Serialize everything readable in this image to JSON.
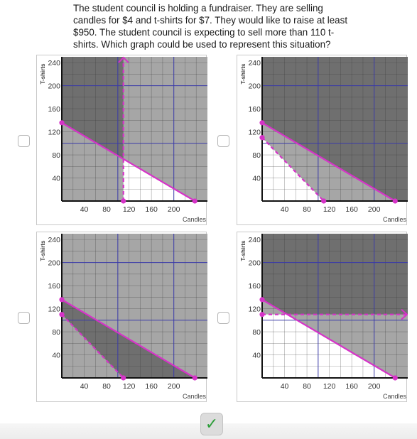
{
  "question": "The student council is holding a fundraiser. They are selling candles for $4 and t-shirts for $7. They would like to raise at least $950. The student council is expecting to sell more than 110 t-shirts. Which graph could be used to represent this situation?",
  "axis": {
    "ylabel": "T-shirts",
    "xlabel": "Candles",
    "yticks": [
      "240",
      "200",
      "160",
      "120",
      "80",
      "40"
    ],
    "xticks": [
      "40",
      "80",
      "120",
      "160",
      "200"
    ]
  },
  "colors": {
    "shade_dark": "#6f6f6f",
    "shade_mid": "#a6a6a6",
    "shade_white": "#ffffff",
    "line": "#d633c8",
    "gridline": "#3a3aa8"
  },
  "chart_data": [
    {
      "type": "line",
      "option": 1,
      "xlim": [
        0,
        260
      ],
      "ylim": [
        0,
        250
      ],
      "solid_line": [
        [
          0,
          135.7
        ],
        [
          237.5,
          0
        ]
      ],
      "boundary": "dashed vertical x = 110 (arrow up)",
      "regions": "dark: y >= line and x < 110; light gray: y >= line and x > 110 plus below line for x < 110; white: below line for x > 110"
    },
    {
      "type": "line",
      "option": 2,
      "xlim": [
        0,
        260
      ],
      "ylim": [
        0,
        250
      ],
      "solid_line": [
        [
          0,
          135.7
        ],
        [
          237.5,
          0
        ]
      ],
      "dashed_line": [
        [
          0,
          110
        ],
        [
          110,
          0
        ]
      ],
      "regions": "dark: above solid line; light gray: between lines; white: below dashed line"
    },
    {
      "type": "line",
      "option": 3,
      "xlim": [
        0,
        260
      ],
      "ylim": [
        0,
        250
      ],
      "solid_line": [
        [
          0,
          135.7
        ],
        [
          237.5,
          0
        ]
      ],
      "dashed_line": [
        [
          0,
          110
        ],
        [
          110,
          0
        ]
      ],
      "regions": "dark: between lines; light gray elsewhere"
    },
    {
      "type": "line",
      "option": 4,
      "xlim": [
        0,
        260
      ],
      "ylim": [
        0,
        250
      ],
      "solid_line": [
        [
          0,
          135.7
        ],
        [
          237.5,
          0
        ]
      ],
      "boundary": "dashed horizontal y = 110 (arrow right)",
      "regions": "dark: above solid line and y > 110; light gray: above y = 110 but below line, and below y = 110 above line; white: below both"
    }
  ],
  "check_icon": "checkmark-icon",
  "check_glyph": "✓"
}
